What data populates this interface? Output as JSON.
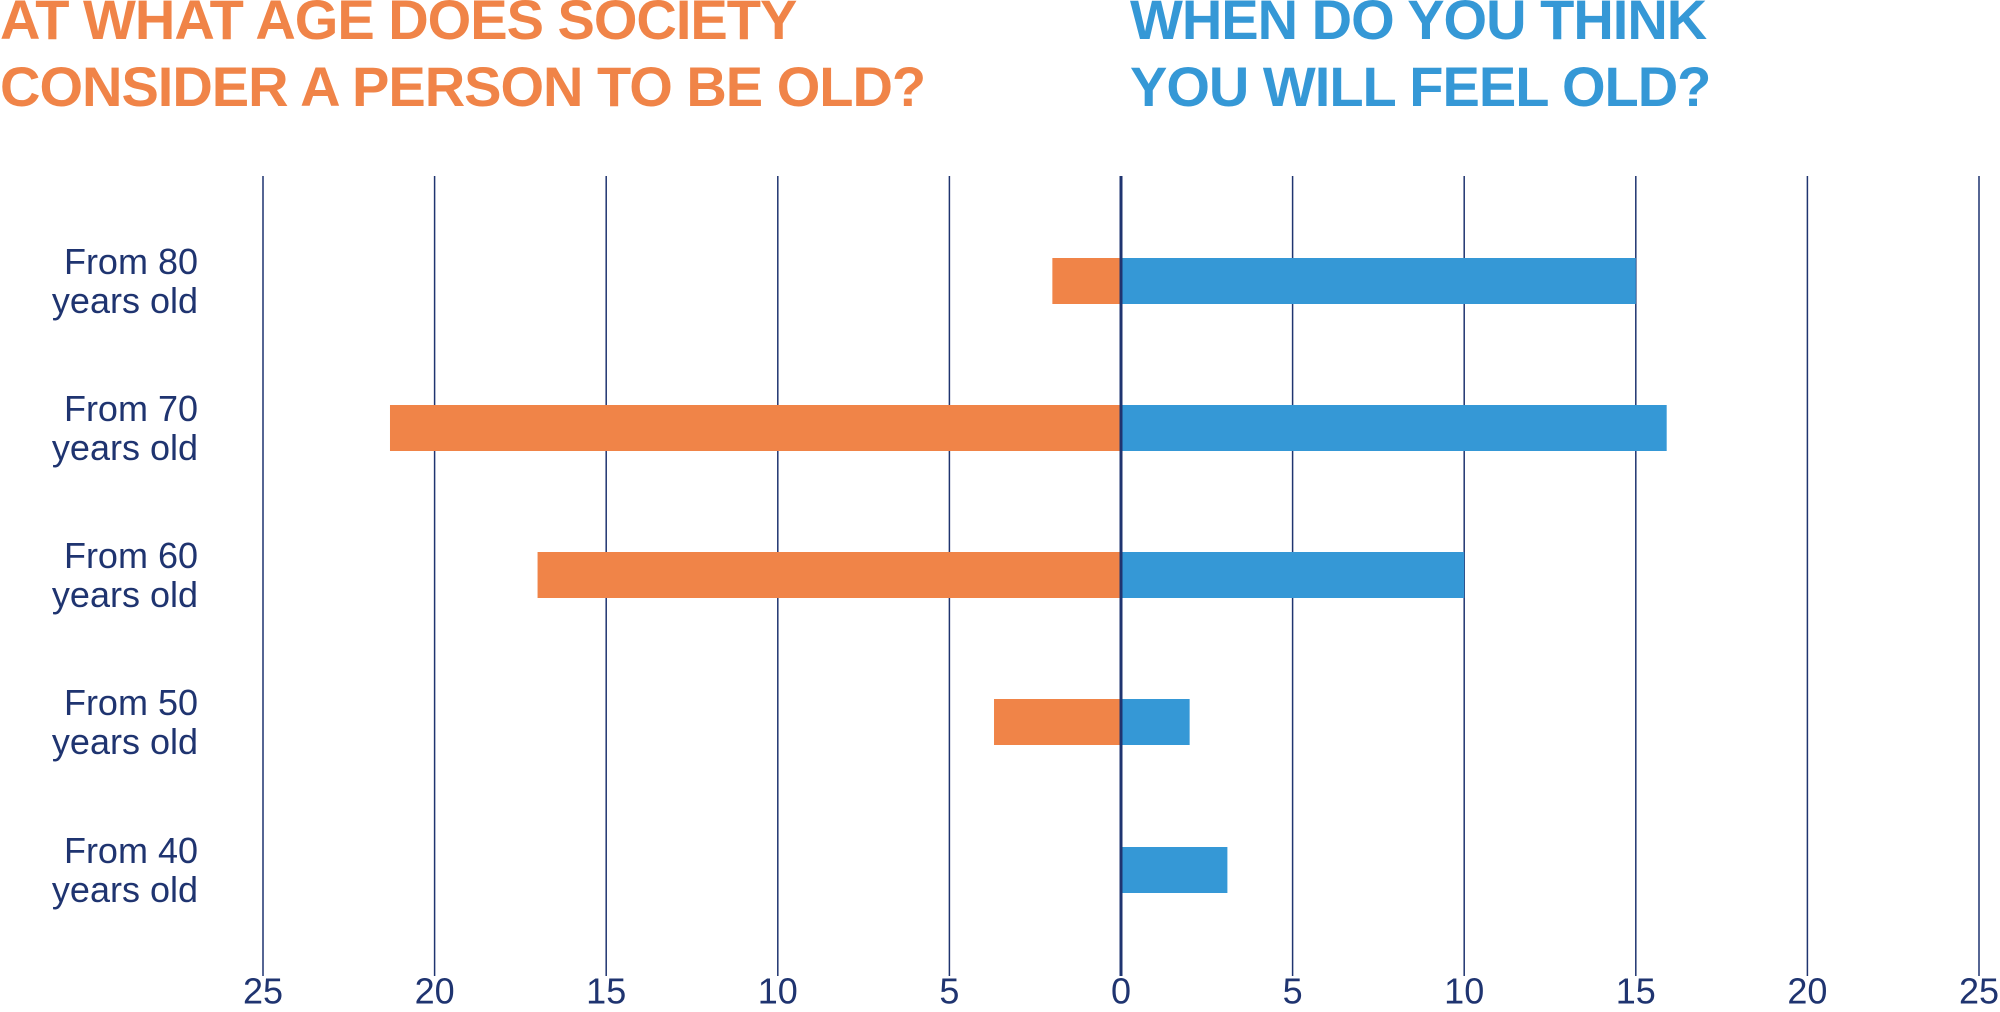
{
  "chart_data": {
    "type": "butterfly_bar",
    "categories": [
      "From 80 years old",
      "From 70 years old",
      "From 60 years old",
      "From 50 years old",
      "From 40 years old"
    ],
    "series": [
      {
        "name": "AT WHAT AGE DOES SOCIETY CONSIDER A PERSON TO BE OLD?",
        "color": "#f08448",
        "values": [
          -2,
          -21.3,
          -17,
          -3.7,
          0
        ]
      },
      {
        "name": "WHEN DO YOU THINK YOU WILL FEEL OLD?",
        "color": "#3598d6",
        "values": [
          15,
          15.9,
          10,
          2,
          3.1
        ]
      }
    ],
    "xlim": [
      -25,
      25
    ],
    "xticks": [
      {
        "value": -25,
        "label": "25"
      },
      {
        "value": -20,
        "label": "20"
      },
      {
        "value": -15,
        "label": "15"
      },
      {
        "value": -10,
        "label": "10"
      },
      {
        "value": -5,
        "label": "5"
      },
      0,
      5,
      10,
      15,
      20,
      25
    ],
    "grid": true
  }
}
